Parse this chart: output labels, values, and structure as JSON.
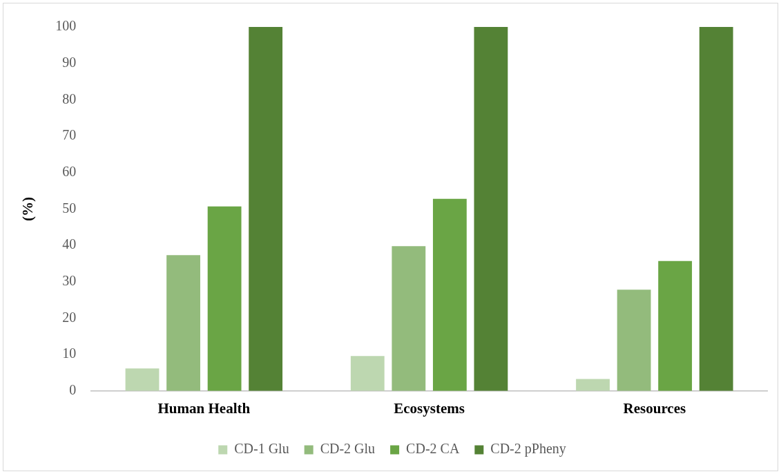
{
  "chart_data": {
    "type": "bar",
    "ylabel": "(%)",
    "categories": [
      "Human Health",
      "Ecosystems",
      "Resources"
    ],
    "series": [
      {
        "name": "CD-1 Glu",
        "color": "#bdd7b0",
        "values": [
          6.2,
          9.6,
          3.3
        ]
      },
      {
        "name": "CD-2 Glu",
        "color": "#93bb7c",
        "values": [
          37.3,
          39.8,
          27.8
        ]
      },
      {
        "name": "CD-2 CA",
        "color": "#6aa545",
        "values": [
          50.7,
          52.8,
          35.7
        ]
      },
      {
        "name": "CD-2 pPheny",
        "color": "#548235",
        "values": [
          100,
          100,
          100
        ]
      }
    ],
    "ylim": [
      0,
      100
    ],
    "yticks": [
      0,
      10,
      20,
      30,
      40,
      50,
      60,
      70,
      80,
      90,
      100
    ],
    "grid": false,
    "legend": "bottom"
  }
}
